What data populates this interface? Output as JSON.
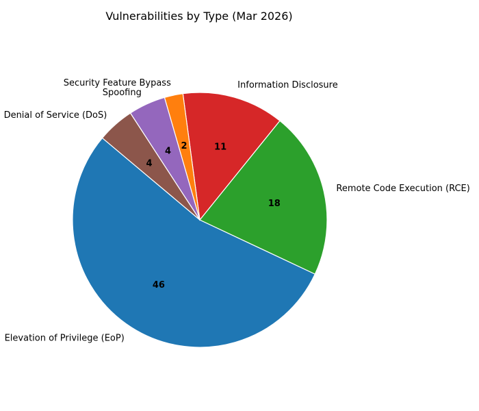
{
  "chart_data": {
    "type": "pie",
    "title": "Vulnerabilities by Type (Mar 2026)",
    "slices": [
      {
        "label": "Elevation of Privilege (EoP)",
        "value": 46,
        "color": "#1f77b4"
      },
      {
        "label": "Remote Code Execution (RCE)",
        "value": 18,
        "color": "#2ca02c"
      },
      {
        "label": "Information Disclosure",
        "value": 11,
        "color": "#d62728"
      },
      {
        "label": "Security Feature Bypass",
        "value": 2,
        "color": "#ff7f0e"
      },
      {
        "label": "Spoofing",
        "value": 4,
        "color": "#9467bd"
      },
      {
        "label": "Denial of Service (DoS)",
        "value": 4,
        "color": "#8c564b"
      }
    ],
    "legend": "none",
    "start_angle_deg": 140,
    "direction": "counterclockwise"
  }
}
